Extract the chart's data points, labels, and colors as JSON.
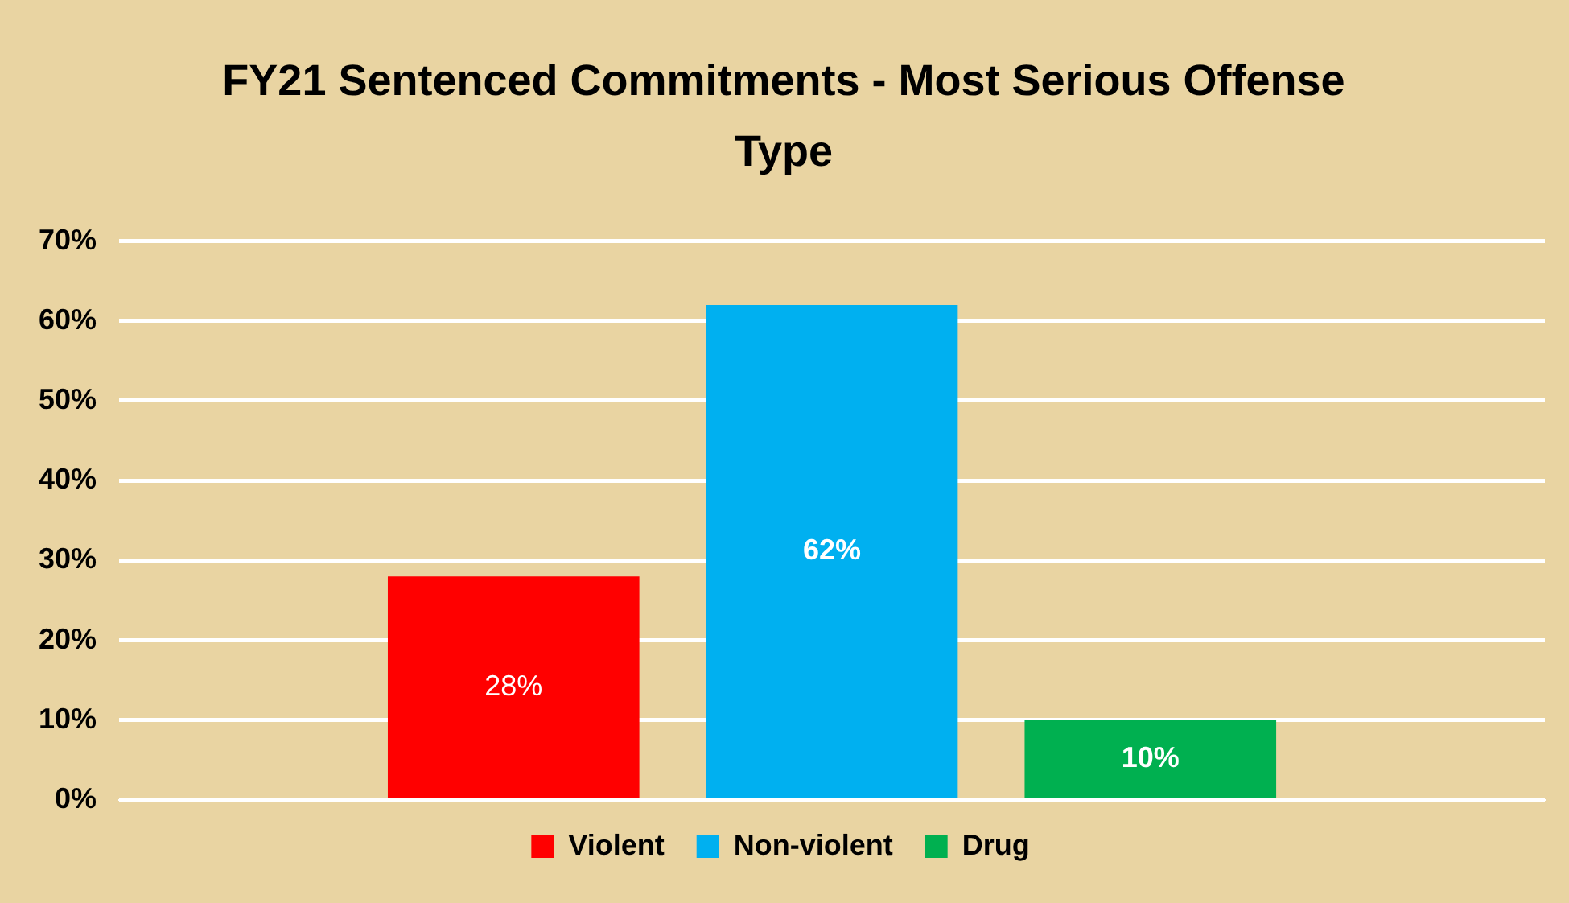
{
  "chart_data": {
    "type": "bar",
    "title": "FY21 Sentenced Commitments - Most Serious Offense Type",
    "categories": [
      null
    ],
    "series": [
      {
        "name": "Violent",
        "color": "#ff0000",
        "values": [
          28
        ],
        "value_labels": [
          "28%"
        ]
      },
      {
        "name": "Non-violent",
        "color": "#00b0f0",
        "values": [
          62
        ],
        "value_labels": [
          "62%"
        ]
      },
      {
        "name": "Drug",
        "color": "#00b050",
        "values": [
          10
        ],
        "value_labels": [
          "10%"
        ]
      }
    ],
    "ylim": [
      0,
      70
    ],
    "yticks": [
      {
        "value": 0,
        "label": "0%"
      },
      {
        "value": 10,
        "label": "10%"
      },
      {
        "value": 20,
        "label": "20%"
      },
      {
        "value": 30,
        "label": "30%"
      },
      {
        "value": 40,
        "label": "40%"
      },
      {
        "value": 50,
        "label": "50%"
      },
      {
        "value": 60,
        "label": "60%"
      },
      {
        "value": 70,
        "label": "70%"
      }
    ],
    "grid": "y",
    "legend": "bottom"
  }
}
